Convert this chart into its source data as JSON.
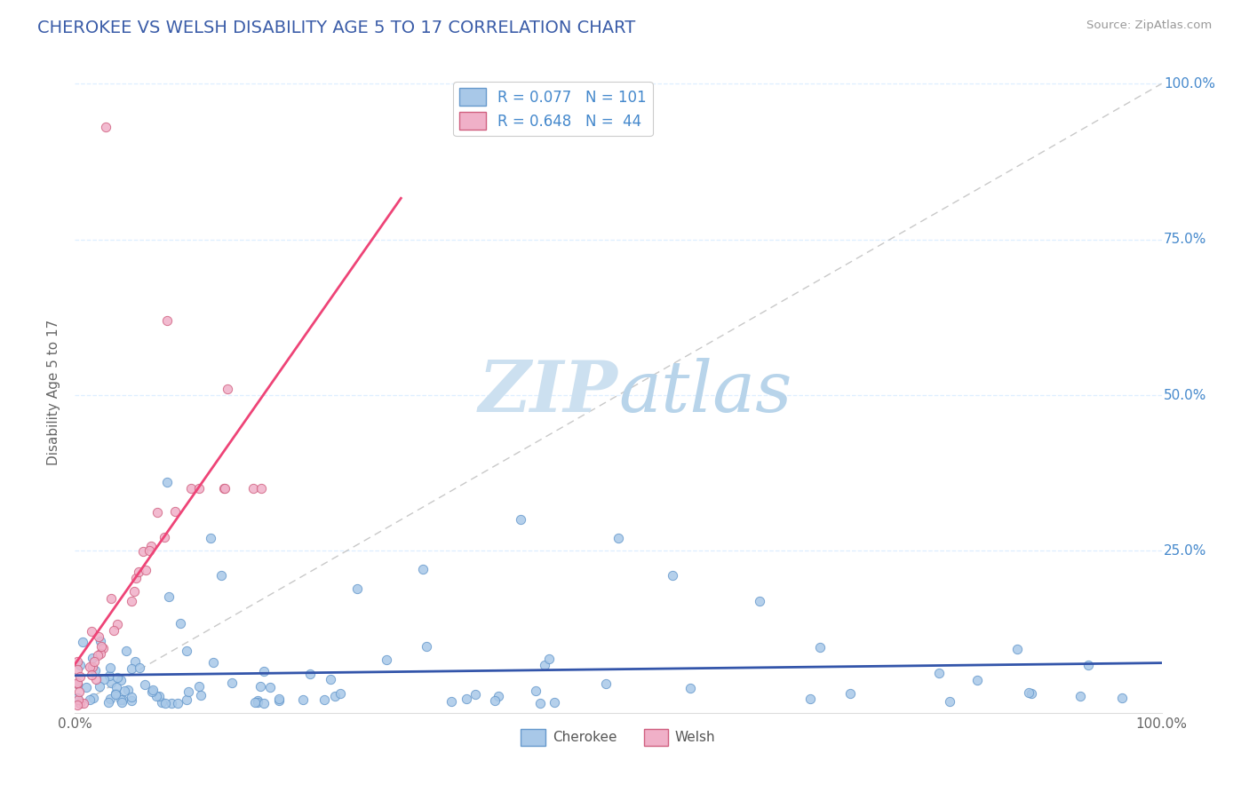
{
  "title": "CHEROKEE VS WELSH DISABILITY AGE 5 TO 17 CORRELATION CHART",
  "source_text": "Source: ZipAtlas.com",
  "ylabel": "Disability Age 5 to 17",
  "xlim": [
    0,
    1
  ],
  "ylim": [
    -0.01,
    1.02
  ],
  "title_color": "#3a5ca8",
  "title_fontsize": 14,
  "source_color": "#999999",
  "watermark_zip": "ZIP",
  "watermark_atlas": "atlas",
  "watermark_color_zip": "#c8dff0",
  "watermark_color_atlas": "#b0ccec",
  "cherokee_color": "#a8c8e8",
  "cherokee_edge": "#6699cc",
  "welsh_color": "#f0b0c8",
  "welsh_edge": "#d06080",
  "cherokee_R": 0.077,
  "cherokee_N": 101,
  "welsh_R": 0.648,
  "welsh_N": 44,
  "cherokee_line_color": "#3355aa",
  "welsh_line_color": "#ee4477",
  "ref_line_color": "#bbbbbb",
  "legend_label_cherokee": "Cherokee",
  "legend_label_welsh": "Welsh",
  "background_color": "#ffffff",
  "grid_color": "#ddeeff",
  "ytick_positions": [
    0.25,
    0.5,
    0.75,
    1.0
  ],
  "ytick_labels": [
    "25.0%",
    "50.0%",
    "75.0%",
    "100.0%"
  ],
  "ytick_color": "#4488cc"
}
